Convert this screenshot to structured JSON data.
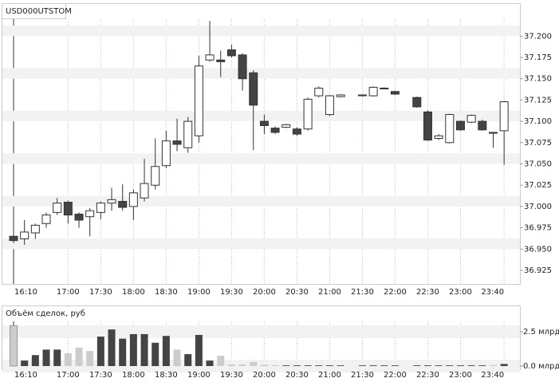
{
  "chart_data": [
    {
      "type": "candlestick",
      "title": "USD000UTSTOM",
      "categories": [
        "16:10",
        null,
        null,
        null,
        null,
        "17:00",
        null,
        null,
        "17:30",
        null,
        null,
        "18:00",
        null,
        null,
        "18:30",
        null,
        null,
        "19:00",
        null,
        null,
        "19:30",
        null,
        null,
        "20:00",
        null,
        null,
        "20:30",
        null,
        null,
        "21:00",
        null,
        null,
        "21:30",
        null,
        null,
        "22:00",
        null,
        null,
        "22:30",
        null,
        null,
        "23:00",
        null,
        null,
        null,
        "23:40"
      ],
      "open": [
        36.965,
        36.962,
        36.969,
        36.98,
        36.993,
        37.005,
        36.991,
        36.988,
        36.993,
        37.004,
        37.006,
        37.0,
        37.01,
        37.025,
        37.048,
        37.077,
        37.069,
        37.083,
        37.172,
        37.172,
        37.184,
        37.178,
        37.157,
        37.1,
        37.092,
        37.093,
        37.091,
        37.091,
        37.13,
        37.108,
        37.129,
        null,
        37.13,
        37.13,
        37.139,
        37.135,
        null,
        37.128,
        37.111,
        37.08,
        37.075,
        37.1,
        37.099,
        37.1,
        37.087,
        37.089
      ],
      "high": [
        36.967,
        36.984,
        36.98,
        36.993,
        37.01,
        37.007,
        36.993,
        36.998,
        37.006,
        37.022,
        37.026,
        37.02,
        37.056,
        37.08,
        37.089,
        37.103,
        37.105,
        37.177,
        37.218,
        37.183,
        37.19,
        37.18,
        37.16,
        37.108,
        37.094,
        37.097,
        37.093,
        37.128,
        37.141,
        37.131,
        37.132,
        null,
        37.131,
        37.141,
        37.14,
        37.136,
        null,
        37.129,
        37.113,
        37.085,
        37.109,
        37.101,
        37.108,
        37.102,
        37.087,
        37.124
      ],
      "low": [
        36.957,
        36.955,
        36.962,
        36.975,
        36.99,
        36.98,
        36.975,
        36.965,
        36.985,
        36.995,
        36.995,
        36.984,
        37.006,
        37.02,
        37.045,
        37.065,
        37.063,
        37.075,
        37.17,
        37.152,
        37.175,
        37.136,
        37.066,
        37.085,
        37.085,
        37.092,
        37.083,
        37.089,
        37.128,
        37.106,
        37.128,
        null,
        37.129,
        37.129,
        37.138,
        37.131,
        null,
        37.116,
        37.077,
        37.078,
        37.074,
        37.089,
        37.098,
        37.089,
        37.069,
        37.049
      ],
      "close": [
        36.96,
        36.97,
        36.978,
        36.99,
        37.004,
        36.99,
        36.984,
        36.995,
        37.004,
        37.008,
        36.999,
        37.016,
        37.027,
        37.047,
        37.077,
        37.073,
        37.1,
        37.165,
        37.178,
        37.17,
        37.177,
        37.15,
        37.119,
        37.095,
        37.087,
        37.096,
        37.085,
        37.126,
        37.139,
        37.13,
        37.131,
        null,
        37.131,
        37.14,
        37.139,
        37.132,
        null,
        37.117,
        37.078,
        37.083,
        37.108,
        37.09,
        37.107,
        37.09,
        37.086,
        37.123
      ],
      "ylim": [
        36.91,
        37.22
      ],
      "yticks": [
        {
          "value": 37.2,
          "label": "37.200"
        },
        {
          "value": 37.175,
          "label": "37.175"
        },
        {
          "value": 37.15,
          "label": "37.150"
        },
        {
          "value": 37.125,
          "label": "37.125"
        },
        {
          "value": 37.1,
          "label": "37.100"
        },
        {
          "value": 37.075,
          "label": "37.075"
        },
        {
          "value": 37.05,
          "label": "37.050"
        },
        {
          "value": 37.025,
          "label": "37.025"
        },
        {
          "value": 37.0,
          "label": "37.000"
        },
        {
          "value": 36.975,
          "label": "36.975"
        },
        {
          "value": 36.95,
          "label": "36.950"
        },
        {
          "value": 36.925,
          "label": "36.925"
        }
      ],
      "up_color": "#ffffff",
      "down_color": "#444444"
    },
    {
      "type": "bar",
      "title": "Объём сделок, руб",
      "values": [
        2.95,
        0.4,
        0.8,
        1.2,
        1.2,
        0.93,
        1.35,
        1.1,
        2.15,
        2.67,
        2.0,
        2.33,
        2.33,
        1.7,
        2.2,
        1.2,
        0.87,
        2.27,
        0.4,
        0.75,
        0.12,
        0.12,
        0.3,
        0.1,
        0.06,
        0.05,
        0.05,
        0.05,
        0.05,
        0.05,
        0.05,
        null,
        0.05,
        0.05,
        0.05,
        0.05,
        null,
        0.05,
        0.05,
        0.05,
        0.05,
        0.05,
        0.05,
        0.05,
        0.08,
        0.15
      ],
      "colors": [
        "#cccccc",
        "#444444",
        "#444444",
        "#444444",
        "#444444",
        "#cccccc",
        "#cccccc",
        "#cccccc",
        "#444444",
        "#444444",
        "#444444",
        "#444444",
        "#444444",
        "#444444",
        "#444444",
        "#cccccc",
        "#444444",
        "#444444",
        "#444444",
        "#cccccc",
        "#cccccc",
        "#cccccc",
        "#cccccc",
        "#cccccc",
        "#cccccc",
        "#444444",
        "#444444",
        "#444444",
        "#444444",
        "#444444",
        "#444444",
        "#444444",
        "#444444",
        "#444444",
        "#444444",
        "#444444",
        "#444444",
        "#444444",
        "#444444",
        "#444444",
        "#444444",
        "#444444",
        "#444444",
        "#444444",
        "#cccccc",
        "#444444"
      ],
      "ylim": [
        0,
        3.1
      ],
      "yticks": [
        {
          "value": 2.5,
          "label": "2.5 млрд"
        },
        {
          "value": 0,
          "label": "0.0 млрд"
        }
      ]
    }
  ]
}
